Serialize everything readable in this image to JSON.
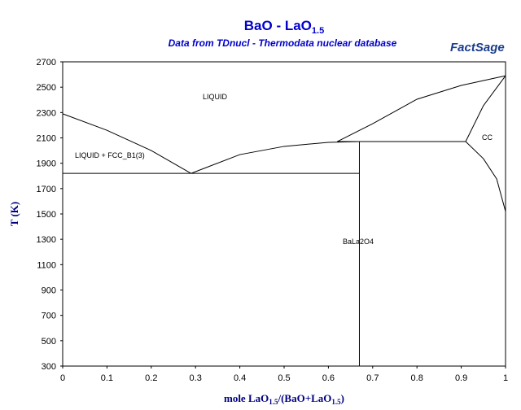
{
  "chart_data": {
    "type": "line",
    "title": [
      "BaO - LaO",
      "1.5"
    ],
    "subtitle": "Data from TDnucl - Thermodata nuclear database",
    "logo": "FactSage",
    "y_label": "T (K)",
    "x_label": [
      "mole LaO",
      "1.5",
      "/(BaO+LaO",
      "1.5",
      ")"
    ],
    "annotations": [
      "LIQUID",
      "LIQUID + FCC_B1(3)",
      "BaLa2O4",
      "CC"
    ],
    "xlim": [
      0,
      1
    ],
    "ylim": [
      300,
      2700
    ],
    "xticks": [
      0,
      0.1,
      0.2,
      0.3,
      0.4,
      0.5,
      0.6,
      0.7,
      0.8,
      0.9,
      1
    ],
    "yticks": [
      300,
      500,
      700,
      900,
      1100,
      1300,
      1500,
      1700,
      1900,
      2100,
      2300,
      2500,
      2700
    ],
    "grid": false,
    "series": [
      {
        "color": "#000000",
        "x": [
          0,
          0.1,
          0.2,
          0.29
        ],
        "values": [
          2290,
          2160,
          2000,
          1820
        ]
      },
      {
        "color": "#000000",
        "x": [
          0.29,
          0.4,
          0.5,
          0.6,
          0.67
        ],
        "values": [
          1820,
          1968,
          2033,
          2065,
          2071
        ]
      },
      {
        "color": "#000000",
        "x": [
          0,
          0.67
        ],
        "values": [
          1820,
          1820
        ]
      },
      {
        "color": "#000000",
        "x": [
          0.67,
          0.67
        ],
        "values": [
          300,
          2071
        ]
      },
      {
        "color": "#000000",
        "x": [
          0.62,
          0.91
        ],
        "values": [
          2071,
          2071
        ]
      },
      {
        "color": "#000000",
        "x": [
          0.62,
          0.7,
          0.8,
          0.9,
          1
        ],
        "values": [
          2071,
          2212,
          2405,
          2514,
          2590
        ]
      },
      {
        "color": "#000000",
        "x": [
          0.91,
          0.95,
          1
        ],
        "values": [
          2071,
          2354,
          2590
        ]
      },
      {
        "color": "#000000",
        "x": [
          0.91,
          0.95,
          0.98,
          1
        ],
        "values": [
          2071,
          1936,
          1776,
          1520
        ]
      }
    ]
  }
}
